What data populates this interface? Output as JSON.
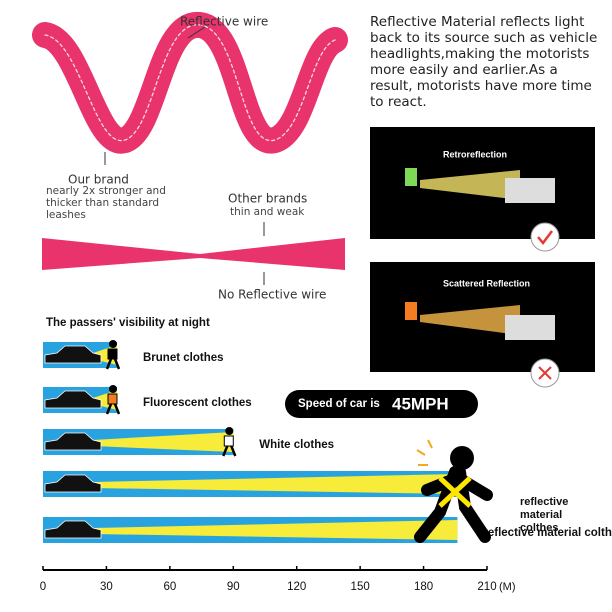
{
  "top_left": {
    "reflective_wire": "Reflective wire",
    "our_brand": "Our brand",
    "our_brand_note": "nearly 2x stronger and thicker than standard leashes",
    "other_brands": "Other brands",
    "other_brands_note": "thin and weak",
    "no_reflective_wire": "No Reflective wire"
  },
  "top_right": {
    "description": "Reflective Material reflects light back to its source such as vehicle headlights,making the motorists more easily and earlier.As a result, motorists have more time to react.",
    "panel_1": "Retroreflection",
    "panel_2": "Scattered Reflection"
  },
  "speed": {
    "label": "Speed of car is",
    "value": "45MPH"
  },
  "chart_data": {
    "type": "hbar",
    "title": "The passers' visibility at night",
    "categories": [
      "Brunet clothes",
      "Fluorescent clothes",
      "White clothes",
      null,
      "reflective material colthes"
    ],
    "values": [
      35,
      35,
      90,
      196,
      196
    ],
    "color": "#29a3e0",
    "xlim": [
      0,
      210
    ],
    "xticks": [
      0,
      30,
      60,
      90,
      120,
      150,
      180,
      210
    ],
    "xlabel": "(M)"
  }
}
